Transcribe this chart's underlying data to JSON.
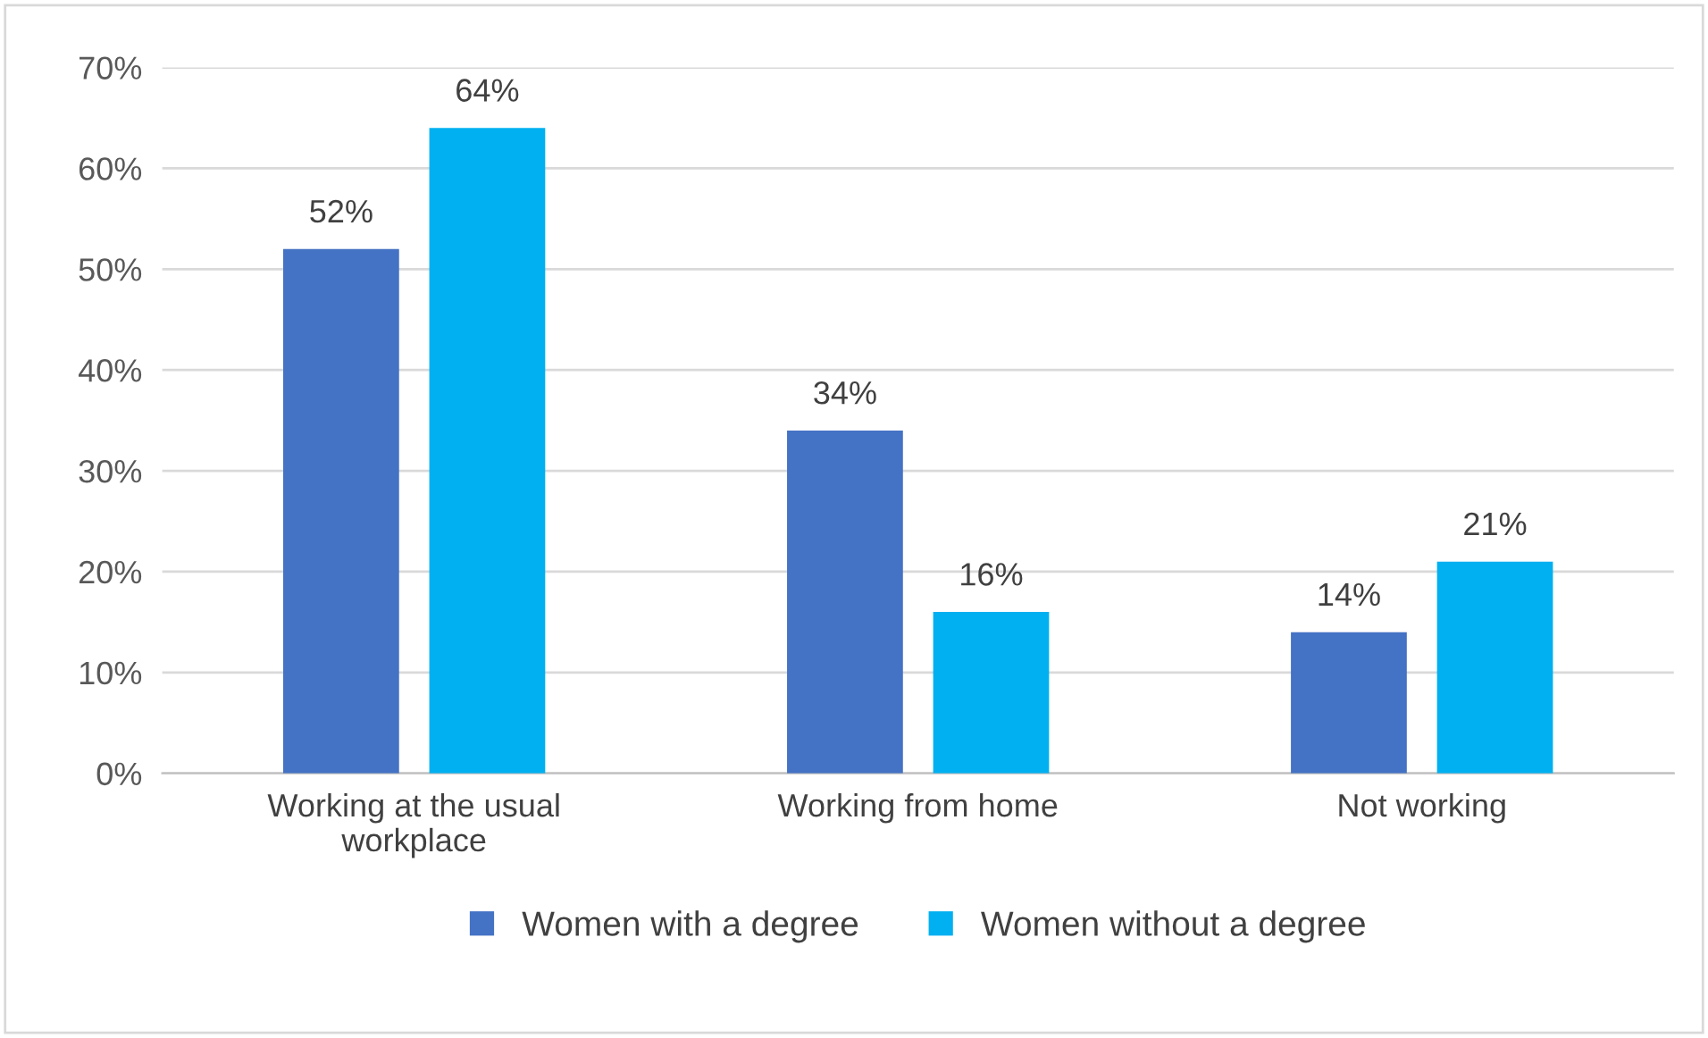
{
  "chart_data": {
    "type": "bar",
    "categories": [
      "Working at the usual\nworkplace",
      "Working from home",
      "Not working"
    ],
    "series": [
      {
        "name": "Women with a degree",
        "color": "#4472c4",
        "values": [
          52,
          34,
          14
        ],
        "value_labels": [
          "52%",
          "34%",
          "14%"
        ]
      },
      {
        "name": "Women without a degree",
        "color": "#00b0f0",
        "values": [
          64,
          16,
          21
        ],
        "value_labels": [
          "64%",
          "16%",
          "21%"
        ]
      }
    ],
    "ylim": [
      0,
      70
    ],
    "yticks": [
      {
        "value": 0,
        "label": "0%"
      },
      {
        "value": 10,
        "label": "10%"
      },
      {
        "value": 20,
        "label": "20%"
      },
      {
        "value": 30,
        "label": "30%"
      },
      {
        "value": 40,
        "label": "40%"
      },
      {
        "value": 50,
        "label": "50%"
      },
      {
        "value": 60,
        "label": "60%"
      },
      {
        "value": 70,
        "label": "70%"
      }
    ],
    "grid": "y",
    "legend": "bottom"
  }
}
